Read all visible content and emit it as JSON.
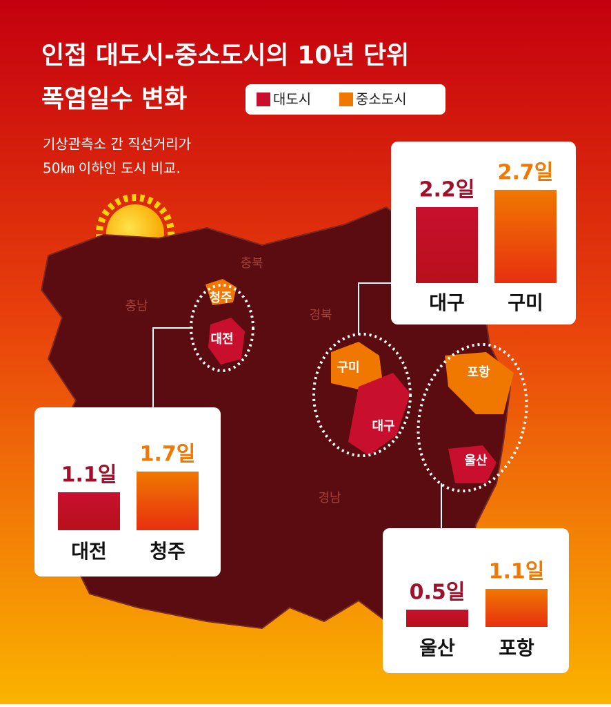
{
  "title": [
    "인접 대도시-중소도시의 10년 단위",
    "폭염일수 변화"
  ],
  "subtitle": [
    "기상관측소 간 직선거리가",
    "50㎞ 이하인 도시 비교."
  ],
  "legend": [
    {
      "name": "대도시",
      "color": "#c8102e"
    },
    {
      "name": "중소도시",
      "color": "#f07800"
    }
  ],
  "map": {
    "labels": [
      "충북",
      "충남",
      "경북",
      "경남",
      "청주",
      "대전",
      "구미",
      "대구",
      "포항",
      "울산"
    ]
  },
  "chart_data": [
    {
      "type": "bar",
      "categories": [
        "대전",
        "청주"
      ],
      "values": [
        1.1,
        1.7
      ],
      "value_labels": [
        "1.1일",
        "1.7일"
      ],
      "colors": [
        "#c8102e",
        "#f07800"
      ]
    },
    {
      "type": "bar",
      "categories": [
        "대구",
        "구미"
      ],
      "values": [
        2.2,
        2.7
      ],
      "value_labels": [
        "2.2일",
        "2.7일"
      ],
      "colors": [
        "#c8102e",
        "#f07800"
      ]
    },
    {
      "type": "bar",
      "categories": [
        "울산",
        "포항"
      ],
      "values": [
        0.5,
        1.1
      ],
      "value_labels": [
        "0.5일",
        "1.1일"
      ],
      "colors": [
        "#c8102e",
        "#f07800"
      ]
    }
  ]
}
